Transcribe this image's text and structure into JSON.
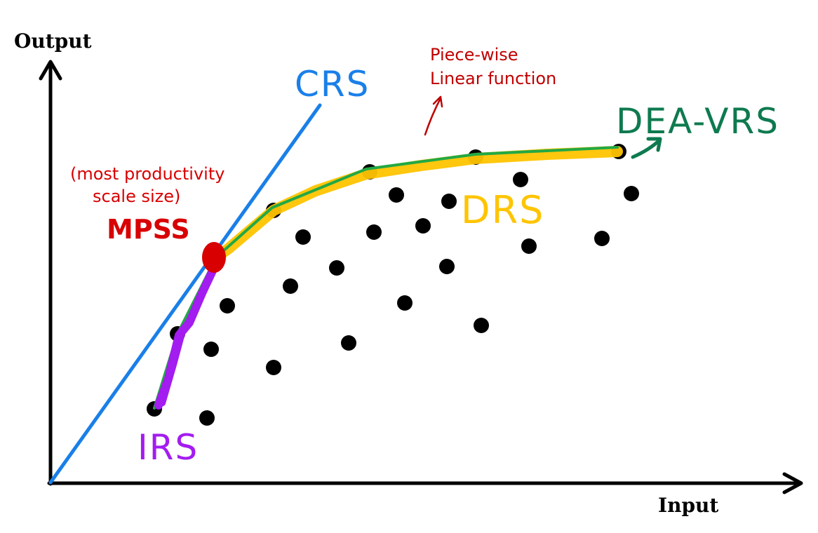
{
  "axes": {
    "y_title": "Output",
    "x_title": "Input"
  },
  "labels": {
    "crs": "CRS",
    "piecewise_line1": "Piece-wise",
    "piecewise_line2": "Linear function",
    "dea_vrs": "DEA-VRS",
    "mpss_note_line1": "(most productivity",
    "mpss_note_line2": "scale size)",
    "mpss": "MPSS",
    "drs": "DRS",
    "irs": "IRS"
  },
  "colors": {
    "crs": "#1a7fe8",
    "frontier": "#22a845",
    "drs": "#ffc400",
    "irs": "#a31cf0",
    "mpss": "#d80000",
    "dea_vrs": "#0e7a4f",
    "points": "#000000"
  }
}
